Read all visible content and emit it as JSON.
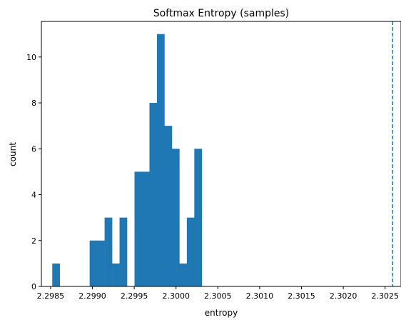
{
  "chart_data": {
    "type": "bar",
    "title": "Softmax Entropy (samples)",
    "xlabel": "entropy",
    "ylabel": "count",
    "xlim": [
      2.29839,
      2.30269
    ],
    "ylim": [
      0,
      11.55
    ],
    "x_ticks": [
      {
        "value": 2.2985,
        "label": "2.2985"
      },
      {
        "value": 2.299,
        "label": "2.2990"
      },
      {
        "value": 2.2995,
        "label": "2.2995"
      },
      {
        "value": 2.3,
        "label": "2.3000"
      },
      {
        "value": 2.3005,
        "label": "2.3005"
      },
      {
        "value": 2.301,
        "label": "2.3010"
      },
      {
        "value": 2.3015,
        "label": "2.3015"
      },
      {
        "value": 2.302,
        "label": "2.3020"
      },
      {
        "value": 2.3025,
        "label": "2.3025"
      }
    ],
    "y_ticks": [
      {
        "value": 0,
        "label": "0"
      },
      {
        "value": 2,
        "label": "2"
      },
      {
        "value": 4,
        "label": "4"
      },
      {
        "value": 6,
        "label": "6"
      },
      {
        "value": 8,
        "label": "8"
      },
      {
        "value": 10,
        "label": "10"
      }
    ],
    "bins": {
      "start": 2.29852,
      "width": 8.94e-05,
      "counts": [
        1,
        0,
        0,
        0,
        0,
        2,
        2,
        3,
        1,
        3,
        0,
        5,
        5,
        8,
        11,
        7,
        6,
        1,
        3,
        6
      ]
    },
    "reference_line": {
      "x": 2.30259,
      "style": "dashed"
    },
    "grid": false,
    "legend": "none",
    "colors": {
      "bars": "#1f77b4",
      "reference_line": "#1f77b4"
    }
  }
}
